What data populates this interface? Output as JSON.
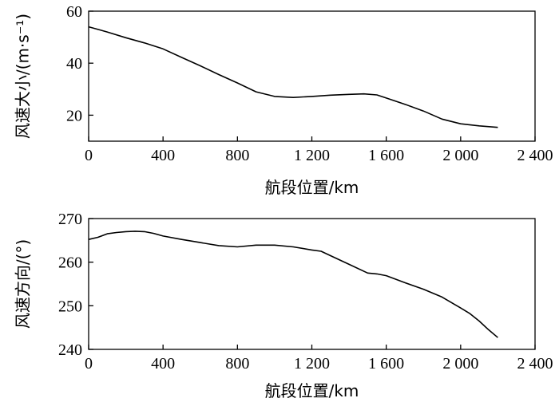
{
  "chart_data": [
    {
      "type": "line",
      "xlabel": "航段位置/km",
      "ylabel": "风速大小/(m·s⁻¹)",
      "xlim": [
        0,
        2400
      ],
      "ylim": [
        10,
        60
      ],
      "xticks": [
        0,
        400,
        800,
        1200,
        1600,
        2000,
        2400
      ],
      "xtick_labels": [
        "0",
        "400",
        "800",
        "1 200",
        "1 600",
        "2 000",
        "2 400"
      ],
      "yticks": [
        20,
        40,
        60
      ],
      "ytick_labels": [
        "20",
        "40",
        "60"
      ],
      "grid": false,
      "series": [
        {
          "x": [
            0,
            100,
            200,
            300,
            400,
            500,
            600,
            700,
            800,
            900,
            1000,
            1100,
            1200,
            1300,
            1400,
            1480,
            1550,
            1600,
            1700,
            1800,
            1900,
            2000,
            2100,
            2200
          ],
          "values": [
            54,
            52,
            49.8,
            47.8,
            45.5,
            42.2,
            39,
            35.6,
            32.4,
            29,
            27.2,
            26.8,
            27.2,
            27.7,
            28,
            28.2,
            27.8,
            26.6,
            24.2,
            21.6,
            18.5,
            16.7,
            15.9,
            15.3
          ]
        }
      ]
    },
    {
      "type": "line",
      "xlabel": "航段位置/km",
      "ylabel": "风速方向/(°)",
      "xlim": [
        0,
        2400
      ],
      "ylim": [
        240,
        270
      ],
      "xticks": [
        0,
        400,
        800,
        1200,
        1600,
        2000,
        2400
      ],
      "xtick_labels": [
        "0",
        "400",
        "800",
        "1 200",
        "1 600",
        "2 000",
        "2 400"
      ],
      "yticks": [
        240,
        250,
        260,
        270
      ],
      "ytick_labels": [
        "240",
        "250",
        "260",
        "270"
      ],
      "grid": false,
      "series": [
        {
          "x": [
            0,
            50,
            100,
            150,
            200,
            250,
            300,
            350,
            400,
            500,
            600,
            700,
            800,
            900,
            1000,
            1100,
            1200,
            1250,
            1300,
            1400,
            1500,
            1550,
            1600,
            1700,
            1800,
            1900,
            2000,
            2050,
            2100,
            2150,
            2200
          ],
          "values": [
            265.2,
            265.7,
            266.5,
            266.8,
            267,
            267.1,
            267,
            266.6,
            266,
            265.2,
            264.5,
            263.8,
            263.5,
            263.9,
            263.9,
            263.5,
            262.8,
            262.5,
            261.5,
            259.5,
            257.5,
            257.3,
            256.9,
            255.3,
            253.8,
            252,
            249.5,
            248.2,
            246.5,
            244.5,
            242.7
          ]
        }
      ]
    }
  ]
}
